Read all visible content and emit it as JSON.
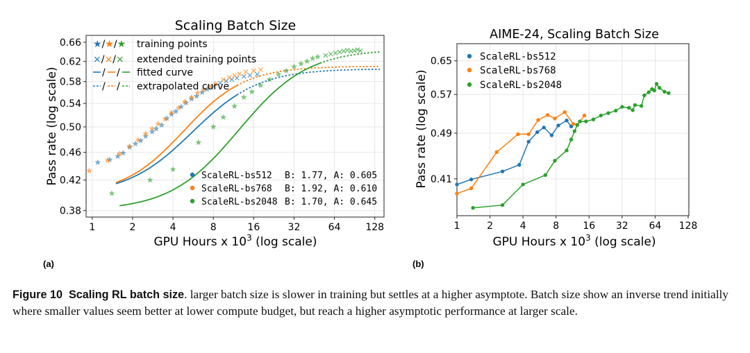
{
  "panel_a_label": "(a)",
  "panel_b_label": "(b)",
  "caption": {
    "figure_number": "Figure 10",
    "title": "Scaling RL batch size",
    "text": ". larger batch size is slower in training but settles at a higher asymptote. Batch size show an inverse trend initially where smaller values seem better at lower compute budget, but reach a higher asymptotic performance at larger scale."
  },
  "chart_data": [
    {
      "id": "a",
      "type": "scatter",
      "title": "Scaling Batch Size",
      "xlabel_main": "GPU Hours x 10",
      "xlabel_sup": "3",
      "xlabel_tail": " (log scale)",
      "ylabel": "Pass rate (log scale)",
      "xlim": [
        0.9,
        150
      ],
      "ylim": [
        0.372,
        0.675
      ],
      "xticks": [
        1,
        2,
        4,
        8,
        16,
        32,
        64,
        128
      ],
      "yticks": [
        0.38,
        0.42,
        0.46,
        0.5,
        0.54,
        0.58,
        0.62,
        0.66
      ],
      "style_legend": [
        {
          "marker": "★/★/★",
          "label": "training points"
        },
        {
          "marker": "×/×/×",
          "label": "extended training points"
        },
        {
          "marker": "—/—/—",
          "label": "fitted curve"
        },
        {
          "marker": "--/--/--",
          "label": "extrapolated curve"
        }
      ],
      "series": [
        {
          "name": "ScaleRL-bs512",
          "fit_text": "B: 1.77, A: 0.605",
          "color": "#1f77b4",
          "B": 1.77,
          "A": 0.605,
          "C_mid": 6.3,
          "R0": 0.4,
          "fit_range": [
            1.5,
            12
          ],
          "extrap_range": [
            12,
            140
          ],
          "training_points": [
            [
              1.1,
              0.445
            ],
            [
              1.35,
              0.449
            ],
            [
              1.55,
              0.454
            ],
            [
              1.7,
              0.459
            ],
            [
              1.9,
              0.468
            ],
            [
              2.1,
              0.473
            ],
            [
              2.3,
              0.478
            ],
            [
              2.5,
              0.485
            ],
            [
              2.8,
              0.492
            ],
            [
              3.0,
              0.497
            ],
            [
              3.3,
              0.503
            ],
            [
              3.6,
              0.514
            ],
            [
              3.9,
              0.521
            ],
            [
              4.2,
              0.526
            ],
            [
              4.6,
              0.534
            ],
            [
              5.0,
              0.541
            ],
            [
              5.5,
              0.548
            ],
            [
              6.0,
              0.553
            ],
            [
              6.6,
              0.56
            ],
            [
              7.2,
              0.566
            ]
          ],
          "extended_points": [
            [
              8.0,
              0.571
            ],
            [
              9.0,
              0.577
            ],
            [
              10.0,
              0.581
            ],
            [
              11.0,
              0.584
            ],
            [
              12.0,
              0.587
            ],
            [
              13.5,
              0.59
            ],
            [
              15.0,
              0.592
            ],
            [
              17.0,
              0.594
            ]
          ]
        },
        {
          "name": "ScaleRL-bs768",
          "fit_text": "B: 1.92, A: 0.610",
          "color": "#ff7f0e",
          "B": 1.92,
          "A": 0.61,
          "C_mid": 5.4,
          "R0": 0.4,
          "fit_range": [
            1.5,
            12
          ],
          "extrap_range": [
            12,
            140
          ],
          "training_points": [
            [
              0.95,
              0.433
            ],
            [
              1.3,
              0.448
            ],
            [
              1.6,
              0.458
            ],
            [
              1.9,
              0.469
            ],
            [
              2.2,
              0.479
            ],
            [
              2.5,
              0.489
            ],
            [
              2.8,
              0.497
            ],
            [
              3.1,
              0.505
            ],
            [
              3.5,
              0.513
            ],
            [
              3.9,
              0.524
            ],
            [
              4.4,
              0.532
            ],
            [
              4.9,
              0.543
            ],
            [
              5.5,
              0.551
            ],
            [
              6.1,
              0.559
            ],
            [
              6.8,
              0.565
            ],
            [
              7.5,
              0.571
            ],
            [
              8.3,
              0.576
            ]
          ],
          "extended_points": [
            [
              9.5,
              0.584
            ],
            [
              10.5,
              0.588
            ],
            [
              11.5,
              0.592
            ],
            [
              12.5,
              0.595
            ],
            [
              14.0,
              0.599
            ],
            [
              16.0,
              0.601
            ],
            [
              18.0,
              0.603
            ]
          ]
        },
        {
          "name": "ScaleRL-bs2048",
          "fit_text": "B: 1.70, A: 0.645",
          "color": "#2ca02c",
          "B": 1.7,
          "A": 0.645,
          "C_mid": 14.5,
          "R0": 0.38,
          "fit_range": [
            1.6,
            50
          ],
          "extrap_range": [
            50,
            140
          ],
          "training_points": [
            [
              1.4,
              0.402
            ],
            [
              2.7,
              0.42
            ],
            [
              4.0,
              0.435
            ],
            [
              6.2,
              0.475
            ],
            [
              8.0,
              0.5
            ],
            [
              9.5,
              0.516
            ],
            [
              11.5,
              0.535
            ],
            [
              13.5,
              0.551
            ],
            [
              15.5,
              0.561
            ],
            [
              18.0,
              0.573
            ],
            [
              21.0,
              0.584
            ],
            [
              24.5,
              0.594
            ],
            [
              28.0,
              0.601
            ],
            [
              32.0,
              0.609
            ],
            [
              36.0,
              0.615
            ],
            [
              40.0,
              0.62
            ],
            [
              44.0,
              0.626
            ],
            [
              48.0,
              0.629
            ]
          ],
          "extended_points": [
            [
              55.0,
              0.632
            ],
            [
              60.0,
              0.635
            ],
            [
              65.0,
              0.637
            ],
            [
              70.0,
              0.639
            ],
            [
              75.0,
              0.641
            ],
            [
              80.0,
              0.643
            ],
            [
              85.0,
              0.641
            ],
            [
              90.0,
              0.642
            ],
            [
              95.0,
              0.644
            ],
            [
              100.0,
              0.642
            ]
          ]
        }
      ]
    },
    {
      "id": "b",
      "type": "line",
      "title": "AIME-24, Scaling Batch Size",
      "xlabel_main": "GPU Hours x 10",
      "xlabel_sup": "3",
      "xlabel_tail": " (log scale)",
      "ylabel": "Pass rate (log scale)",
      "xlim": [
        1,
        130
      ],
      "ylim": [
        0.355,
        0.695
      ],
      "xticks": [
        1,
        2,
        4,
        8,
        16,
        32,
        64,
        128
      ],
      "yticks": [
        0.41,
        0.49,
        0.57,
        0.65
      ],
      "legend_position": "top-left",
      "series": [
        {
          "name": "ScaleRL-bs512",
          "color": "#1f77b4",
          "points": [
            [
              1.0,
              0.401
            ],
            [
              1.35,
              0.409
            ],
            [
              2.6,
              0.422
            ],
            [
              3.7,
              0.433
            ],
            [
              4.5,
              0.474
            ],
            [
              5.4,
              0.492
            ],
            [
              6.2,
              0.501
            ],
            [
              7.3,
              0.486
            ],
            [
              8.4,
              0.505
            ],
            [
              10.0,
              0.515
            ],
            [
              11.0,
              0.503
            ]
          ]
        },
        {
          "name": "ScaleRL-bs768",
          "color": "#ff7f0e",
          "points": [
            [
              1.0,
              0.387
            ],
            [
              1.35,
              0.395
            ],
            [
              2.3,
              0.455
            ],
            [
              3.6,
              0.488
            ],
            [
              4.5,
              0.488
            ],
            [
              5.5,
              0.516
            ],
            [
              6.7,
              0.526
            ],
            [
              7.8,
              0.519
            ],
            [
              9.6,
              0.532
            ],
            [
              11.5,
              0.508
            ],
            [
              12.5,
              0.506
            ],
            [
              14.5,
              0.525
            ]
          ]
        },
        {
          "name": "ScaleRL-bs2048",
          "color": "#2ca02c",
          "points": [
            [
              1.4,
              0.366
            ],
            [
              2.6,
              0.37
            ],
            [
              4.0,
              0.401
            ],
            [
              6.4,
              0.416
            ],
            [
              7.8,
              0.44
            ],
            [
              10.0,
              0.458
            ],
            [
              11.0,
              0.478
            ],
            [
              11.8,
              0.494
            ],
            [
              12.5,
              0.506
            ],
            [
              13.2,
              0.513
            ],
            [
              15.0,
              0.513
            ],
            [
              17.5,
              0.517
            ],
            [
              20.5,
              0.525
            ],
            [
              24.0,
              0.53
            ],
            [
              28.0,
              0.535
            ],
            [
              32.0,
              0.543
            ],
            [
              37.0,
              0.541
            ],
            [
              40.0,
              0.536
            ],
            [
              42.0,
              0.547
            ],
            [
              48.0,
              0.545
            ],
            [
              51.0,
              0.568
            ],
            [
              56.0,
              0.575
            ],
            [
              60.0,
              0.582
            ],
            [
              63.0,
              0.579
            ],
            [
              66.0,
              0.594
            ],
            [
              70.0,
              0.585
            ],
            [
              78.0,
              0.576
            ],
            [
              85.0,
              0.573
            ]
          ]
        }
      ]
    }
  ]
}
